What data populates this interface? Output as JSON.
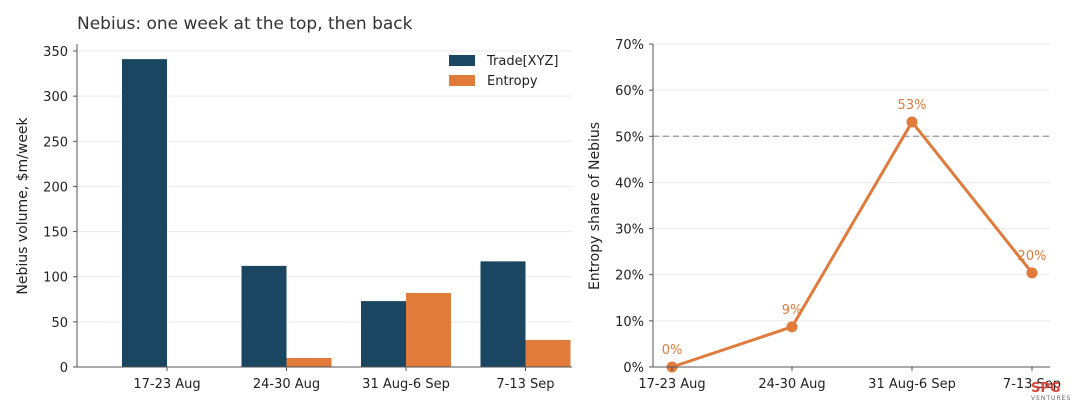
{
  "colors": {
    "trade": "#1b4662",
    "entropy": "#e07b3c",
    "grid": "#e9e9e9",
    "axis": "#555555",
    "reference": "#999999",
    "logo": "#d9483b"
  },
  "logo": {
    "main": "SPG",
    "sub": "VENTURES",
    "icon": "brand-logo"
  },
  "chart_data": [
    {
      "type": "bar",
      "title": "Nebius: one week at the top, then back",
      "xlabel": "",
      "ylabel": "Nebius volume, $m/week",
      "categories": [
        "17-23 Aug",
        "24-30 Aug",
        "31 Aug-6 Sep",
        "7-13 Sep"
      ],
      "series": [
        {
          "name": "Trade[XYZ]",
          "values": [
            341,
            112,
            73,
            117
          ]
        },
        {
          "name": "Entropy",
          "values": [
            0,
            10,
            82,
            30
          ]
        }
      ],
      "ylim": [
        0,
        350
      ],
      "yticks": [
        "0",
        "50",
        "100",
        "150",
        "200",
        "250",
        "300",
        "350"
      ],
      "grid": true,
      "legend": "top-right"
    },
    {
      "type": "line",
      "title": "",
      "xlabel": "",
      "ylabel": "Entropy share of Nebius",
      "categories": [
        "17-23 Aug",
        "24-30 Aug",
        "31 Aug-6 Sep",
        "7-13 Sep"
      ],
      "values": [
        0,
        8.7,
        53.1,
        20.4
      ],
      "data_labels": [
        "0%",
        "9%",
        "53%",
        "20%"
      ],
      "ylim": [
        0,
        70
      ],
      "yticks": [
        "0%",
        "10%",
        "20%",
        "30%",
        "40%",
        "50%",
        "60%",
        "70%"
      ],
      "reference_line": 50,
      "grid": true
    }
  ]
}
